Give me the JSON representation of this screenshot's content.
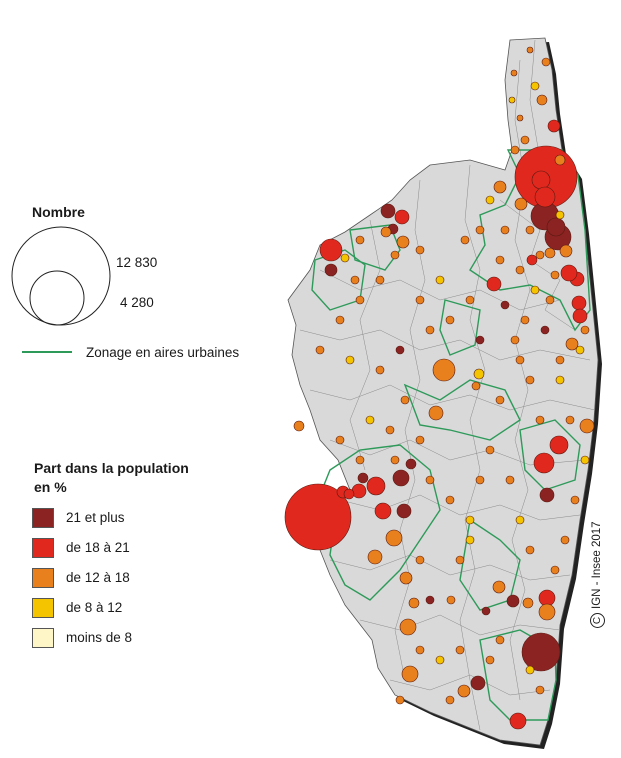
{
  "legend": {
    "size_title": "Nombre",
    "size_values": [
      "12 830",
      "4 280"
    ],
    "zonage_label": "Zonage en aires urbaines",
    "share_title_line1": "Part dans la population",
    "share_title_line2": "en %",
    "classes": [
      {
        "label": "21 et plus",
        "color": "#8b2323"
      },
      {
        "label": "de 18 à 21",
        "color": "#e0281e"
      },
      {
        "label": "de 12 à 18",
        "color": "#e8801e"
      },
      {
        "label": "de 8 à 12",
        "color": "#f5c400"
      },
      {
        "label": "moins de 8",
        "color": "#fff6c8"
      }
    ]
  },
  "colors": {
    "land": "#d9d9d9",
    "commune_border": "#8a8a8a",
    "zonage": "#2e9a5a",
    "shadow": "#222222"
  },
  "credit": "IGN - Insee 2017"
}
